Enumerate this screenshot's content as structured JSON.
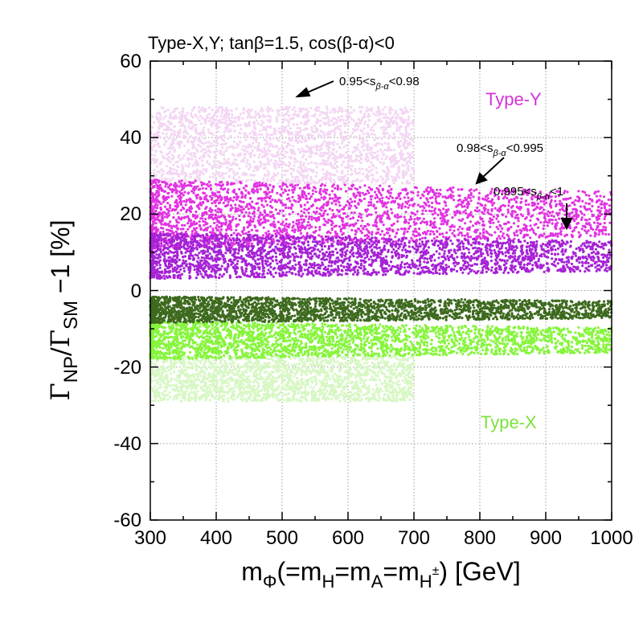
{
  "chart_data": {
    "type": "scatter",
    "title": "Type-X,Y; tanβ=1.5, cos(β-α)<0",
    "xlabel": {
      "main": "m",
      "sub": "Φ",
      "mid": "(=m",
      "sub_h": "H",
      "eq1": "=m",
      "sub_a": "A",
      "eq2": "=m",
      "sub_hpm": "H",
      "sup_pm": "±",
      "tail": ") [GeV]"
    },
    "ylabel": {
      "gamma1": "Γ",
      "sub_np": "NP",
      "slash": "/Γ",
      "sub_sm": "SM",
      "tail": " −1 [%]"
    },
    "xlim": [
      300,
      1000
    ],
    "ylim": [
      -60,
      60
    ],
    "xticks": [
      "300",
      "400",
      "500",
      "600",
      "700",
      "800",
      "900",
      "1000"
    ],
    "yticks": [
      "60",
      "40",
      "20",
      "0",
      "-20",
      "-40",
      "-60"
    ],
    "grid": true,
    "series": [
      {
        "name": "Type-Y, 0.95<s_{β-α}<0.98",
        "color": "#f3d6f3",
        "x_range": [
          300,
          700
        ],
        "y_center": 38,
        "y_halfwidth": 10
      },
      {
        "name": "Type-Y, 0.98<s_{β-α}<0.995",
        "color": "#e233e2",
        "x_range": [
          300,
          1000
        ],
        "y_center": 20,
        "y_halfwidth": 9
      },
      {
        "name": "Type-Y, 0.995<s_{β-α}<1",
        "color": "#a622d6",
        "x_range": [
          300,
          1000
        ],
        "y_center": 9,
        "y_halfwidth": 6
      },
      {
        "name": "Type-X, 0.95<s_{β-α}<0.98",
        "color": "#d7f7c4",
        "x_range": [
          300,
          700
        ],
        "y_center": -23,
        "y_halfwidth": 6
      },
      {
        "name": "Type-X, 0.98<s_{β-α}<0.995",
        "color": "#86f53c",
        "x_range": [
          300,
          1000
        ],
        "y_center": -13,
        "y_halfwidth": 5
      },
      {
        "name": "Type-X, 0.995<s_{β-α}<1",
        "color": "#3d6a1e",
        "x_range": [
          300,
          1000
        ],
        "y_center": -5,
        "y_halfwidth": 3.5
      }
    ],
    "annotations": [
      {
        "prefix": "0.95<s",
        "sub": "β-α",
        "suffix": "<0.98",
        "point_to": [
          505,
          50
        ]
      },
      {
        "prefix": "0.98<s",
        "sub": "β-α",
        "suffix": "<0.995",
        "point_to": [
          795,
          28
        ]
      },
      {
        "prefix": "0.995<s",
        "sub": "β-α",
        "suffix": "<1",
        "point_to": [
          932,
          16
        ]
      }
    ],
    "type_labels": [
      {
        "text": "Type-Y",
        "color": "#d433d8"
      },
      {
        "text": "Type-X",
        "color": "#7be23a"
      }
    ]
  }
}
